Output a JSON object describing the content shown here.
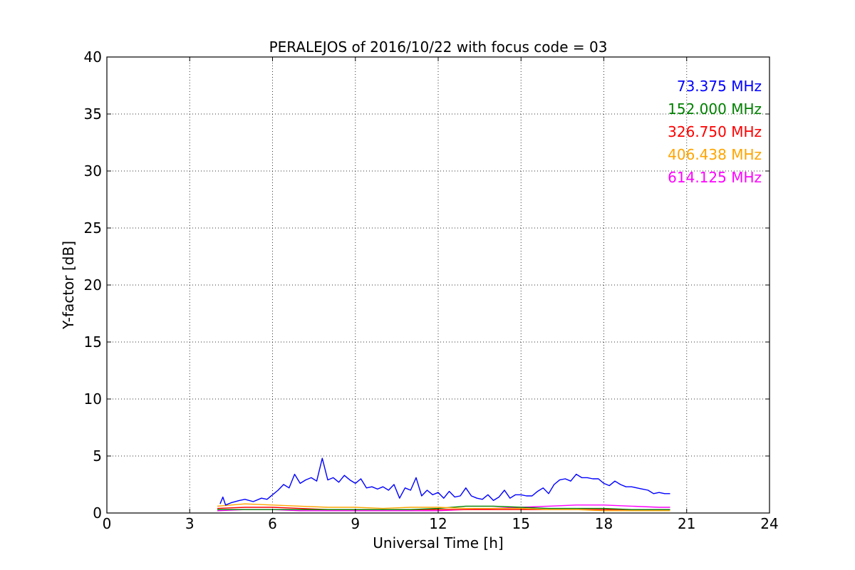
{
  "chart_data": {
    "type": "line",
    "title": "PERALEJOS of 2016/10/22 with focus code = 03",
    "xlabel": "Universal Time [h]",
    "ylabel": "Y-factor [dB]",
    "xlim": [
      0,
      24
    ],
    "ylim": [
      0,
      40
    ],
    "xticks": [
      0,
      3,
      6,
      9,
      12,
      15,
      18,
      21,
      24
    ],
    "yticks": [
      0,
      5,
      10,
      15,
      20,
      25,
      30,
      35,
      40
    ],
    "xtick_labels": [
      "0",
      "3",
      "6",
      "9",
      "12",
      "15",
      "18",
      "21",
      "24"
    ],
    "ytick_labels": [
      "0",
      "5",
      "10",
      "15",
      "20",
      "25",
      "30",
      "35",
      "40"
    ],
    "grid": true,
    "legend_position": "top-right",
    "series": [
      {
        "name": "73.375 MHz",
        "color": "#0000ff",
        "x": [
          4.1,
          4.2,
          4.3,
          4.5,
          4.8,
          5.0,
          5.3,
          5.6,
          5.8,
          6.0,
          6.2,
          6.4,
          6.6,
          6.8,
          7.0,
          7.2,
          7.4,
          7.6,
          7.8,
          8.0,
          8.2,
          8.4,
          8.6,
          8.8,
          9.0,
          9.2,
          9.4,
          9.6,
          9.8,
          10.0,
          10.2,
          10.4,
          10.6,
          10.8,
          11.0,
          11.2,
          11.4,
          11.6,
          11.8,
          12.0,
          12.2,
          12.4,
          12.6,
          12.8,
          13.0,
          13.2,
          13.4,
          13.6,
          13.8,
          14.0,
          14.2,
          14.4,
          14.6,
          14.8,
          15.0,
          15.2,
          15.4,
          15.6,
          15.8,
          16.0,
          16.2,
          16.4,
          16.6,
          16.8,
          17.0,
          17.2,
          17.4,
          17.6,
          17.8,
          18.0,
          18.2,
          18.4,
          18.6,
          18.8,
          19.0,
          19.2,
          19.4,
          19.6,
          19.8,
          20.0,
          20.2,
          20.4
        ],
        "y": [
          0.8,
          1.4,
          0.7,
          0.9,
          1.1,
          1.2,
          1.0,
          1.3,
          1.2,
          1.6,
          2.0,
          2.5,
          2.2,
          3.4,
          2.6,
          2.9,
          3.1,
          2.8,
          4.8,
          2.9,
          3.1,
          2.7,
          3.3,
          2.9,
          2.6,
          3.0,
          2.2,
          2.3,
          2.1,
          2.3,
          2.0,
          2.5,
          1.3,
          2.2,
          2.0,
          3.1,
          1.5,
          2.0,
          1.6,
          1.8,
          1.3,
          1.9,
          1.4,
          1.5,
          2.2,
          1.5,
          1.3,
          1.2,
          1.6,
          1.1,
          1.4,
          2.0,
          1.3,
          1.6,
          1.6,
          1.5,
          1.5,
          1.9,
          2.2,
          1.7,
          2.5,
          2.9,
          3.0,
          2.8,
          3.4,
          3.1,
          3.1,
          3.0,
          3.0,
          2.6,
          2.4,
          2.8,
          2.5,
          2.3,
          2.3,
          2.2,
          2.1,
          2.0,
          1.7,
          1.8,
          1.7,
          1.7
        ]
      },
      {
        "name": "152.000 MHz",
        "color": "#008000",
        "x": [
          4.0,
          5.0,
          6.0,
          7.0,
          8.0,
          9.0,
          10.0,
          11.0,
          12.0,
          13.0,
          14.0,
          15.0,
          16.0,
          17.0,
          18.0,
          19.0,
          20.0,
          20.4
        ],
        "y": [
          0.3,
          0.3,
          0.3,
          0.3,
          0.3,
          0.3,
          0.3,
          0.3,
          0.4,
          0.6,
          0.6,
          0.5,
          0.4,
          0.4,
          0.4,
          0.3,
          0.3,
          0.3
        ]
      },
      {
        "name": "326.750 MHz",
        "color": "#ff0000",
        "x": [
          4.0,
          5.0,
          6.0,
          7.0,
          8.0,
          9.0,
          10.0,
          11.0,
          12.0,
          13.0,
          14.0,
          15.0,
          16.0,
          17.0,
          18.0,
          19.0,
          20.0,
          20.4
        ],
        "y": [
          0.4,
          0.5,
          0.5,
          0.4,
          0.3,
          0.3,
          0.3,
          0.3,
          0.3,
          0.3,
          0.3,
          0.3,
          0.3,
          0.3,
          0.3,
          0.3,
          0.3,
          0.3
        ]
      },
      {
        "name": "406.438 MHz",
        "color": "#ffa500",
        "x": [
          4.0,
          5.0,
          6.0,
          7.0,
          8.0,
          9.0,
          10.0,
          11.0,
          12.0,
          13.0,
          14.0,
          15.0,
          16.0,
          17.0,
          18.0,
          19.0,
          20.0,
          20.4
        ],
        "y": [
          0.6,
          0.8,
          0.7,
          0.6,
          0.5,
          0.5,
          0.4,
          0.5,
          0.5,
          0.4,
          0.4,
          0.4,
          0.3,
          0.3,
          0.2,
          0.2,
          0.2,
          0.2
        ]
      },
      {
        "name": "614.125 MHz",
        "color": "#ff00ff",
        "x": [
          4.0,
          5.0,
          6.0,
          7.0,
          8.0,
          9.0,
          10.0,
          11.0,
          12.0,
          13.0,
          14.0,
          15.0,
          16.0,
          17.0,
          18.0,
          19.0,
          20.0,
          20.4
        ],
        "y": [
          0.2,
          0.3,
          0.3,
          0.2,
          0.2,
          0.2,
          0.2,
          0.2,
          0.2,
          0.3,
          0.4,
          0.5,
          0.6,
          0.7,
          0.7,
          0.6,
          0.5,
          0.5
        ]
      }
    ]
  }
}
